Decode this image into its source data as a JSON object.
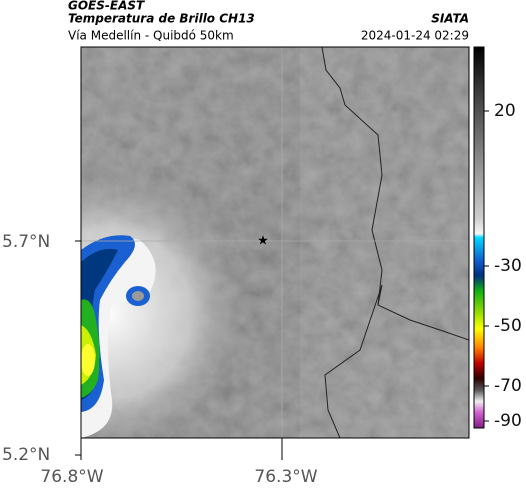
{
  "header": {
    "source": "GOES-EAST",
    "title": "Temperatura de Brillo CH13",
    "subtitle": "Vía Medellín - Quibdó 50km",
    "credit": "SIATA",
    "timestamp": "2024-01-24 02:29"
  },
  "axes": {
    "lat_labels": [
      "5.7°N",
      "5.2°N"
    ],
    "lon_labels": [
      "76.8°W",
      "76.3°W"
    ]
  },
  "colorbar": {
    "ticks": [
      20,
      -30,
      -50,
      -70,
      -90
    ]
  }
}
